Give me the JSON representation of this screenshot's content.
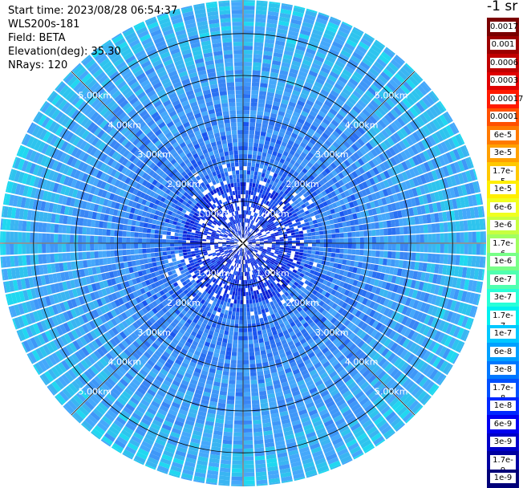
{
  "info": {
    "start_time": "Start time: 2023/08/28 06:54:37",
    "instrument": "WLS200s-181",
    "field": "Field: BETA",
    "elevation": "Elevation(deg): 35.30",
    "nrays": "NRays: 120"
  },
  "unit": "-1 sr",
  "range_rings": {
    "labels": [
      "1.00km",
      "2.00km",
      "3.00km",
      "4.00km",
      "5.00km"
    ],
    "label_quadrants": [
      "upper-left",
      "upper-right",
      "lower-left",
      "lower-right"
    ]
  },
  "colorbar": {
    "labels": [
      "0.0017",
      "0.001",
      "0.0006",
      "0.0003",
      "0.00017",
      "0.0001",
      "6e-5",
      "3e-5",
      "1.7e-5",
      "1e-5",
      "6e-6",
      "3e-6",
      "1.7e-6",
      "1e-6",
      "6e-7",
      "3e-7",
      "1.7e-7",
      "1e-7",
      "6e-8",
      "3e-8",
      "1.7e-8",
      "1e-8",
      "6e-9",
      "3e-9",
      "1.7e-9",
      "1e-9"
    ],
    "colors": [
      "#7a0000",
      "#9c0000",
      "#c00000",
      "#e00000",
      "#ff1a00",
      "#ff5000",
      "#ff7a00",
      "#ffa000",
      "#ffc800",
      "#ffee00",
      "#f0ff20",
      "#c8ff40",
      "#a0ff60",
      "#78ff88",
      "#50ffb0",
      "#28ffd8",
      "#00f0f0",
      "#00c8ff",
      "#00a0ff",
      "#0078ff",
      "#0050ff",
      "#0028ff",
      "#0000f0",
      "#0000c8",
      "#0000a0",
      "#000078"
    ]
  },
  "chart_data": {
    "type": "heatmap",
    "projection": "PPI polar",
    "field": "BETA",
    "nrays": 120,
    "elevation_deg": 35.3,
    "range_rings_km": [
      1,
      2,
      3,
      4,
      5
    ],
    "max_range_km": 5.8
  }
}
